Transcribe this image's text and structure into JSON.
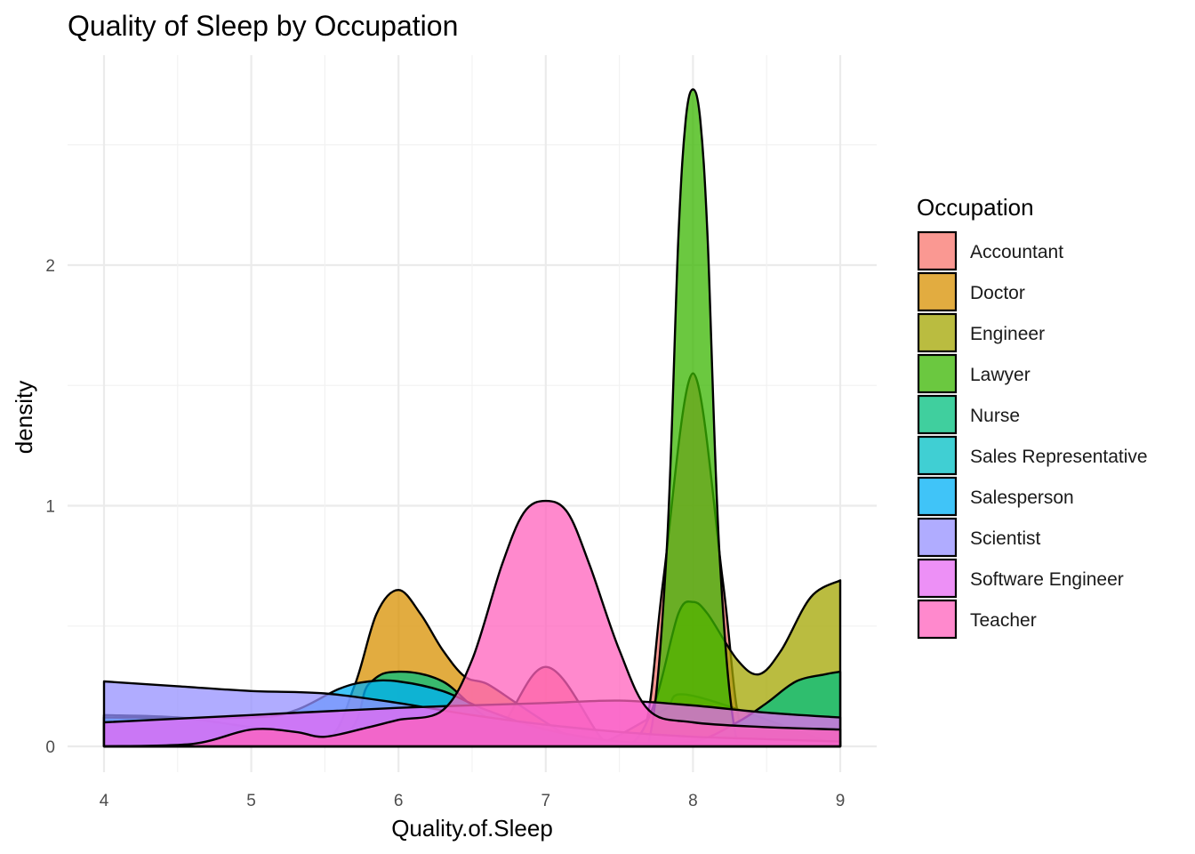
{
  "chart_data": {
    "type": "area",
    "subtype": "density",
    "title": "Quality of Sleep by Occupation",
    "xlabel": "Quality.of.Sleep",
    "ylabel": "density",
    "xlim": [
      4,
      9
    ],
    "ylim": [
      0,
      2.75
    ],
    "x_ticks": [
      4,
      5,
      6,
      7,
      8,
      9
    ],
    "y_ticks": [
      0,
      1,
      2
    ],
    "grid": true,
    "fill_alpha": 0.75,
    "legend": {
      "title": "Occupation",
      "position": "right"
    },
    "series": [
      {
        "name": "Accountant",
        "color": "#F8766D",
        "x": [
          4,
          5,
          6,
          6.6,
          7,
          7.4,
          7.6,
          7.7,
          7.8,
          8,
          8.2,
          8.3,
          8.4,
          8.6,
          9
        ],
        "y": [
          0,
          0,
          0,
          0.02,
          0.33,
          0.02,
          0.02,
          0.15,
          0.7,
          1.55,
          0.7,
          0.15,
          0.02,
          0,
          0
        ]
      },
      {
        "name": "Doctor",
        "color": "#D89000",
        "x": [
          4,
          5,
          5.5,
          5.7,
          5.85,
          6,
          6.15,
          6.3,
          6.45,
          6.6,
          6.8,
          7,
          7.2,
          7.4,
          7.8,
          8,
          9
        ],
        "y": [
          0,
          0,
          0.02,
          0.25,
          0.55,
          0.65,
          0.55,
          0.4,
          0.29,
          0.26,
          0.18,
          0.1,
          0.03,
          0.02,
          0.15,
          0.21,
          0
        ]
      },
      {
        "name": "Engineer",
        "color": "#A3A500",
        "x": [
          4,
          7.4,
          7.6,
          7.75,
          7.9,
          8,
          8.1,
          8.3,
          8.45,
          8.6,
          8.8,
          9
        ],
        "y": [
          0,
          0,
          0.02,
          0.2,
          0.55,
          0.6,
          0.55,
          0.36,
          0.3,
          0.4,
          0.62,
          0.69
        ]
      },
      {
        "name": "Lawyer",
        "color": "#39B600",
        "x": [
          4,
          7.5,
          7.7,
          7.82,
          7.9,
          7.95,
          8,
          8.05,
          8.1,
          8.18,
          8.3,
          8.5,
          9
        ],
        "y": [
          0,
          0,
          0.02,
          0.8,
          2.1,
          2.6,
          2.73,
          2.6,
          2.1,
          0.8,
          0.02,
          0,
          0
        ]
      },
      {
        "name": "Nurse",
        "color": "#00BF7D",
        "x": [
          4,
          5.5,
          5.8,
          6,
          6.3,
          6.6,
          7,
          7.5,
          8,
          8.3,
          8.5,
          8.7,
          8.9,
          9
        ],
        "y": [
          0,
          0.01,
          0.26,
          0.31,
          0.27,
          0.12,
          0.03,
          0.01,
          0.02,
          0.1,
          0.18,
          0.27,
          0.3,
          0.31
        ]
      },
      {
        "name": "Sales Representative",
        "color": "#00BFC4",
        "x": [
          4,
          4.5,
          5,
          5.5,
          6,
          6.5,
          7,
          7.5,
          8,
          8.5,
          9
        ],
        "y": [
          0.13,
          0.12,
          0.08,
          0.04,
          0.02,
          0.01,
          0,
          0,
          0,
          0,
          0
        ]
      },
      {
        "name": "Salesperson",
        "color": "#00B0F6",
        "x": [
          4,
          5,
          5.3,
          5.6,
          5.8,
          6,
          6.3,
          6.6,
          7,
          7.5,
          8,
          9
        ],
        "y": [
          0.12,
          0.12,
          0.15,
          0.24,
          0.27,
          0.27,
          0.23,
          0.15,
          0.07,
          0.02,
          0.01,
          0
        ]
      },
      {
        "name": "Scientist",
        "color": "#9590FF",
        "x": [
          4,
          4.5,
          5,
          5.5,
          6,
          6.5,
          7,
          7.5,
          8,
          8.5,
          9
        ],
        "y": [
          0.27,
          0.25,
          0.23,
          0.22,
          0.18,
          0.13,
          0.09,
          0.06,
          0.04,
          0.03,
          0.02
        ]
      },
      {
        "name": "Software Engineer",
        "color": "#E76BF3",
        "x": [
          4,
          5,
          6,
          7,
          7.5,
          8,
          8.5,
          9
        ],
        "y": [
          0.1,
          0.13,
          0.16,
          0.18,
          0.19,
          0.17,
          0.14,
          0.12
        ]
      },
      {
        "name": "Teacher",
        "color": "#FF62BC",
        "x": [
          4,
          4.6,
          5,
          5.3,
          5.5,
          5.8,
          6,
          6.3,
          6.5,
          6.7,
          6.85,
          7,
          7.15,
          7.3,
          7.5,
          7.7,
          8,
          8.5,
          9
        ],
        "y": [
          0,
          0.01,
          0.07,
          0.06,
          0.04,
          0.08,
          0.11,
          0.15,
          0.36,
          0.75,
          0.97,
          1.02,
          0.97,
          0.75,
          0.4,
          0.15,
          0.1,
          0.08,
          0.07
        ]
      }
    ]
  }
}
